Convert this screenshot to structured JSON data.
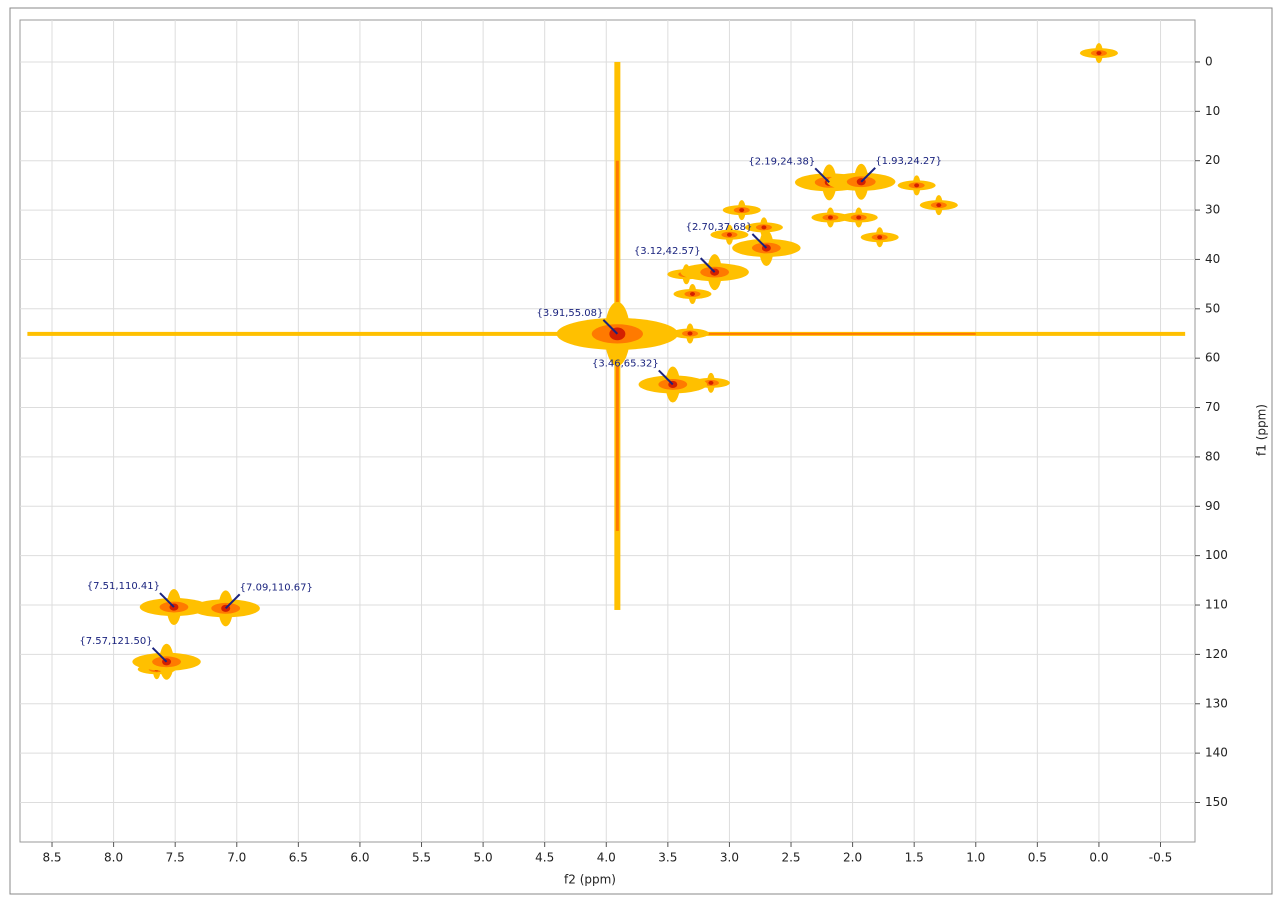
{
  "chart_data": {
    "type": "nmr2d",
    "xlabel": "f2 (ppm)",
    "ylabel": "f1 (ppm)",
    "xlim": [
      8.76,
      -0.78
    ],
    "ylim": [
      -8.5,
      158
    ],
    "xticks": [
      8.5,
      {
        "value": 8,
        "label": "8.0"
      },
      7.5,
      {
        "value": 7,
        "label": "7.0"
      },
      6.5,
      {
        "value": 6,
        "label": "6.0"
      },
      5.5,
      {
        "value": 5,
        "label": "5.0"
      },
      4.5,
      {
        "value": 4,
        "label": "4.0"
      },
      3.5,
      {
        "value": 3,
        "label": "3.0"
      },
      2.5,
      {
        "value": 2,
        "label": "2.0"
      },
      1.5,
      {
        "value": 1,
        "label": "1.0"
      },
      0.5,
      {
        "value": 0,
        "label": "0.0"
      },
      -0.5
    ],
    "yticks": [
      0,
      10,
      20,
      30,
      40,
      50,
      60,
      70,
      80,
      90,
      100,
      110,
      120,
      130,
      140,
      150
    ],
    "grid": true,
    "colors": [
      "#ffc000",
      "#ff7a00",
      "#d42000"
    ],
    "label_color": "#1a237e",
    "peaks": {
      "x": [
        7.51,
        7.09,
        7.57,
        3.91,
        3.46,
        3.12,
        2.7,
        2.19,
        1.93
      ],
      "y": [
        110.41,
        110.67,
        121.5,
        55.08,
        65.32,
        42.57,
        37.68,
        24.38,
        24.27
      ],
      "value_labels": [
        "{7.51,110.41}",
        "{7.09,110.67}",
        "{7.57,121.50}",
        "{3.91,55.08}",
        "{3.46,65.32}",
        "{3.12,42.57}",
        "{2.70,37.68}",
        "{2.19,24.38}",
        "{1.93,24.27}"
      ]
    },
    "other_peaks": {
      "x": [
        0.0,
        3.3,
        3.35,
        2.72,
        2.9,
        3.0,
        1.78,
        1.48,
        1.3,
        2.18,
        1.95,
        7.65,
        3.32,
        3.15
      ],
      "y": [
        -1.8,
        47,
        43,
        33.5,
        30,
        35,
        35.5,
        25,
        29,
        31.5,
        31.5,
        123,
        55,
        65
      ]
    }
  }
}
